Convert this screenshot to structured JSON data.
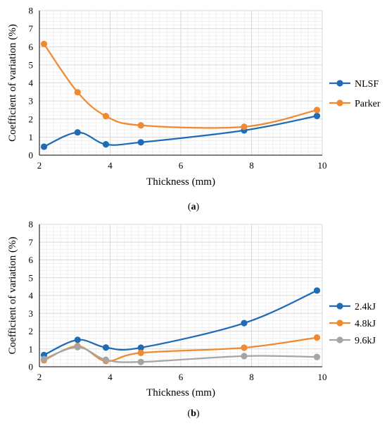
{
  "chart_data": [
    {
      "type": "line",
      "id": "a",
      "caption": {
        "open": "(",
        "letter": "a",
        "close": ")"
      },
      "xlabel": "Thickness (mm)",
      "ylabel": "Coefficient of variation (%)",
      "xlim": [
        2,
        10
      ],
      "ylim": [
        0,
        8
      ],
      "xticks": [
        "2",
        "4",
        "6",
        "8",
        "10"
      ],
      "yticks": [
        "0",
        "1",
        "2",
        "3",
        "4",
        "5",
        "6",
        "7",
        "8"
      ],
      "grid": true,
      "legend_position": "right",
      "series": [
        {
          "name": "NLSF",
          "color": "#1f6bb5",
          "x": [
            2.13,
            3.08,
            3.88,
            4.87,
            7.79,
            9.85
          ],
          "y": [
            0.47,
            1.26,
            0.6,
            0.71,
            1.37,
            2.17
          ]
        },
        {
          "name": "Parker",
          "color": "#f08a32",
          "x": [
            2.13,
            3.08,
            3.88,
            4.87,
            7.79,
            9.85
          ],
          "y": [
            6.15,
            3.48,
            2.16,
            1.65,
            1.57,
            2.5
          ]
        }
      ]
    },
    {
      "type": "line",
      "id": "b",
      "caption": {
        "open": "(",
        "letter": "b",
        "close": ")"
      },
      "xlabel": "Thickness (mm)",
      "ylabel": "Coefficient of variation (%)",
      "xlim": [
        2,
        10
      ],
      "ylim": [
        0,
        8
      ],
      "xticks": [
        "2",
        "4",
        "6",
        "8",
        "10"
      ],
      "yticks": [
        "0",
        "1",
        "2",
        "3",
        "4",
        "5",
        "6",
        "7",
        "8"
      ],
      "grid": true,
      "legend_position": "right",
      "series": [
        {
          "name": "2.4kJ",
          "color": "#1f6bb5",
          "x": [
            2.13,
            3.08,
            3.88,
            4.87,
            7.79,
            9.85
          ],
          "y": [
            0.66,
            1.51,
            1.08,
            1.07,
            2.45,
            4.28
          ]
        },
        {
          "name": "4.8kJ",
          "color": "#f08a32",
          "x": [
            2.13,
            3.08,
            3.88,
            4.87,
            7.79,
            9.85
          ],
          "y": [
            0.36,
            1.16,
            0.32,
            0.78,
            1.07,
            1.64
          ]
        },
        {
          "name": "9.6kJ",
          "color": "#a5a5a5",
          "x": [
            2.13,
            3.08,
            3.88,
            4.87,
            7.79,
            9.85
          ],
          "y": [
            0.43,
            1.1,
            0.39,
            0.27,
            0.6,
            0.55
          ]
        }
      ]
    }
  ]
}
